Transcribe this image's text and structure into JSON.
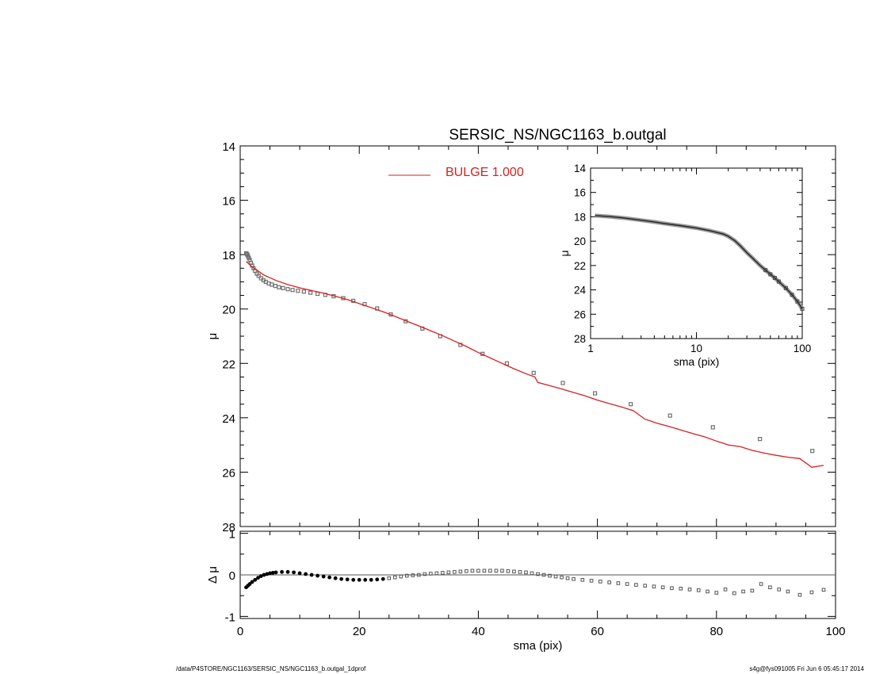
{
  "footer": {
    "left": "/data/P4STORE/NGC1163/SERSIC_NS/NGC1163_b.outgal_1dprof",
    "right": "s4g@fys091005  Fri Jun  6 05:45:17 2014"
  },
  "colors": {
    "model": "#d62020",
    "data": "#707070",
    "residual": "#000000",
    "axis": "#000000"
  },
  "chart_data": [
    {
      "id": "main-profile",
      "type": "line",
      "title": "SERSIC_NS/NGC1163_b.outgal",
      "xlabel": "",
      "ylabel": "μ",
      "xlim": [
        0,
        100
      ],
      "ylim": [
        28,
        14
      ],
      "yreversed": true,
      "grid": false,
      "xticks": [
        0,
        20,
        40,
        60,
        80,
        100
      ],
      "xtick_labels": [
        "",
        "",
        "",
        "",
        "",
        ""
      ],
      "yticks": [
        14,
        16,
        18,
        20,
        22,
        24,
        26,
        28
      ],
      "ytick_labels": [
        "14",
        "16",
        "18",
        "20",
        "22",
        "24",
        "26",
        "28"
      ],
      "legend": {
        "placement": "top-center",
        "entries": [
          {
            "label": "BULGE  1.000",
            "color": "#d62020"
          }
        ]
      },
      "series": [
        {
          "name": "BULGE  1.000",
          "style": "line",
          "color": "#d62020",
          "x": [
            1,
            2,
            3,
            4,
            5,
            6,
            8,
            10,
            12,
            14,
            16,
            18,
            20,
            22,
            24,
            26,
            28,
            30,
            32,
            34,
            36,
            38,
            40,
            42,
            44,
            46,
            48,
            49.5,
            50,
            52,
            54,
            56,
            58,
            60,
            62,
            64,
            66,
            68,
            70,
            72,
            74,
            76,
            78,
            80,
            82,
            84,
            86,
            88,
            90,
            92,
            94,
            96,
            98
          ],
          "y": [
            18.25,
            18.45,
            18.6,
            18.75,
            18.85,
            18.95,
            19.1,
            19.22,
            19.32,
            19.42,
            19.53,
            19.65,
            19.8,
            19.95,
            20.1,
            20.27,
            20.45,
            20.62,
            20.8,
            20.98,
            21.18,
            21.38,
            21.6,
            21.8,
            22.0,
            22.2,
            22.38,
            22.5,
            22.7,
            22.82,
            22.94,
            23.07,
            23.2,
            23.35,
            23.48,
            23.6,
            23.74,
            24.05,
            24.2,
            24.32,
            24.45,
            24.58,
            24.7,
            24.86,
            25.0,
            25.06,
            25.2,
            25.3,
            25.38,
            25.45,
            25.5,
            25.82,
            25.75
          ]
        },
        {
          "name": "",
          "style": "points",
          "color": "#707070",
          "x": [
            1.0,
            1.1,
            1.2,
            1.3,
            1.45,
            1.6,
            1.8,
            2.0,
            2.25,
            2.5,
            2.8,
            3.1,
            3.5,
            3.9,
            4.3,
            4.8,
            5.3,
            5.9,
            6.5,
            7.2,
            8.0,
            8.8,
            9.7,
            10.7,
            11.8,
            13.0,
            14.3,
            15.7,
            17.3,
            19.0,
            20.9,
            23.0,
            25.3,
            27.8,
            30.6,
            33.6,
            37.0,
            40.7,
            44.8,
            49.3,
            54.2,
            59.6,
            65.6,
            72.2,
            79.4,
            87.3,
            96.1
          ],
          "y": [
            17.95,
            17.97,
            18.0,
            18.05,
            18.12,
            18.2,
            18.3,
            18.4,
            18.5,
            18.6,
            18.7,
            18.78,
            18.87,
            18.94,
            19.0,
            19.06,
            19.1,
            19.15,
            19.2,
            19.23,
            19.27,
            19.3,
            19.33,
            19.36,
            19.4,
            19.44,
            19.48,
            19.53,
            19.6,
            19.7,
            19.82,
            19.98,
            20.2,
            20.45,
            20.72,
            21.0,
            21.32,
            21.65,
            22.0,
            22.35,
            22.72,
            23.1,
            23.5,
            23.92,
            24.35,
            24.78,
            25.22
          ]
        }
      ]
    },
    {
      "id": "inset-log",
      "type": "line",
      "xlabel": "sma (pix)",
      "ylabel": "μ",
      "xscale": "log",
      "xlim": [
        1,
        100
      ],
      "ylim": [
        28,
        14
      ],
      "yreversed": true,
      "grid": false,
      "xticks": [
        1,
        10,
        100
      ],
      "xtick_labels": [
        "1",
        "10",
        "100"
      ],
      "yticks": [
        14,
        16,
        18,
        20,
        22,
        24,
        26,
        28
      ],
      "ytick_labels": [
        "14",
        "16",
        "18",
        "20",
        "22",
        "24",
        "26",
        "28"
      ],
      "series": [
        {
          "name": "",
          "style": "band",
          "color": "#555555",
          "x": [
            1.1,
            1.5,
            2,
            3,
            4,
            5,
            7,
            10,
            13,
            16,
            18,
            20,
            23,
            26,
            30,
            35,
            40,
            45,
            50,
            55,
            60,
            70,
            80,
            90,
            100
          ],
          "y": [
            17.9,
            17.98,
            18.08,
            18.28,
            18.42,
            18.55,
            18.72,
            18.92,
            19.12,
            19.3,
            19.42,
            19.6,
            19.95,
            20.38,
            20.95,
            21.5,
            22.0,
            22.38,
            22.72,
            23.02,
            23.32,
            23.85,
            24.4,
            24.95,
            25.55
          ]
        }
      ]
    },
    {
      "id": "residual",
      "type": "scatter",
      "xlabel": "sma (pix)",
      "ylabel": "Δ μ",
      "xlim": [
        0,
        100
      ],
      "ylim": [
        -1.05,
        1.05
      ],
      "grid": false,
      "xticks": [
        0,
        20,
        40,
        60,
        80,
        100
      ],
      "xtick_labels": [
        "0",
        "20",
        "40",
        "60",
        "80",
        "100"
      ],
      "yticks": [
        -1,
        0,
        1
      ],
      "ytick_labels": [
        "-1",
        "0",
        "1"
      ],
      "reference_line": 0,
      "series": [
        {
          "name": "",
          "color": "#000000",
          "x": [
            1.0,
            1.3,
            1.6,
            2.0,
            2.5,
            3.0,
            3.5,
            4.0,
            4.5,
            5.0,
            5.5,
            6.0,
            7.0,
            8.0,
            9.0,
            10.0,
            11.0,
            12.0,
            13.0,
            14.0,
            15.0,
            16.0,
            17.0,
            18.0,
            19.0,
            20.0,
            21.0,
            22.0,
            23.0,
            24.0,
            25.0,
            26.0,
            27.0,
            28.0,
            29.0,
            30.0,
            31.0,
            32.0,
            33.0,
            34.0,
            35.0,
            36.0,
            37.0,
            38.0,
            39.0,
            40.0,
            41.0,
            42.0,
            43.0,
            44.0,
            45.0,
            46.0,
            47.0,
            48.0,
            49.0,
            50.0,
            51.0,
            52.0,
            53.0,
            54.0,
            55.0,
            56.0,
            57.5,
            59.0,
            60.5,
            62.0,
            63.5,
            65.0,
            66.5,
            68.0,
            69.5,
            71.0,
            72.5,
            74.0,
            75.5,
            77.0,
            78.5,
            80.0,
            81.5,
            83.0,
            84.5,
            86.0,
            87.5,
            89.0,
            90.5,
            92.0,
            94.0,
            96.0,
            98.0
          ],
          "y": [
            -0.3,
            -0.26,
            -0.22,
            -0.17,
            -0.12,
            -0.07,
            -0.03,
            0.0,
            0.02,
            0.04,
            0.05,
            0.06,
            0.07,
            0.07,
            0.06,
            0.04,
            0.02,
            0.0,
            -0.02,
            -0.04,
            -0.06,
            -0.08,
            -0.1,
            -0.11,
            -0.12,
            -0.12,
            -0.12,
            -0.12,
            -0.11,
            -0.1,
            -0.08,
            -0.06,
            -0.04,
            -0.02,
            -0.01,
            0.0,
            0.02,
            0.03,
            0.04,
            0.05,
            0.06,
            0.07,
            0.08,
            0.09,
            0.1,
            0.1,
            0.1,
            0.1,
            0.1,
            0.1,
            0.09,
            0.08,
            0.07,
            0.06,
            0.04,
            0.02,
            0.0,
            -0.02,
            -0.04,
            -0.06,
            -0.08,
            -0.1,
            -0.12,
            -0.14,
            -0.16,
            -0.18,
            -0.2,
            -0.22,
            -0.24,
            -0.26,
            -0.28,
            -0.3,
            -0.32,
            -0.33,
            -0.35,
            -0.37,
            -0.4,
            -0.43,
            -0.35,
            -0.44,
            -0.4,
            -0.38,
            -0.22,
            -0.3,
            -0.35,
            -0.4,
            -0.48,
            -0.42,
            -0.36
          ]
        }
      ]
    }
  ]
}
